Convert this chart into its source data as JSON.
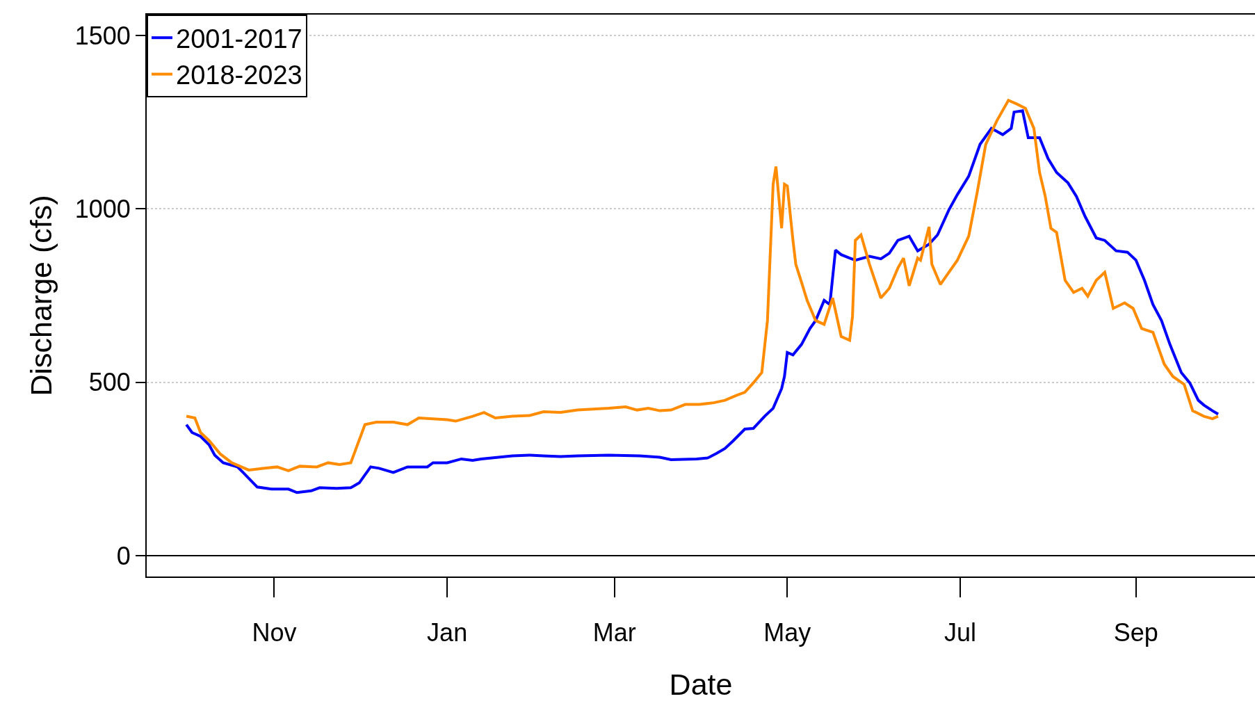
{
  "chart_data": {
    "type": "line",
    "xlabel": "Date",
    "ylabel": "Discharge (cfs)",
    "xlim": [
      "2000-09-17",
      "2001-10-13"
    ],
    "ylim": [
      -60,
      1560
    ],
    "xticks": [
      {
        "value": "2000-11-01",
        "label": "Nov"
      },
      {
        "value": "2001-01-01",
        "label": "Jan"
      },
      {
        "value": "2001-03-01",
        "label": "Mar"
      },
      {
        "value": "2001-05-01",
        "label": "May"
      },
      {
        "value": "2001-07-01",
        "label": "Jul"
      },
      {
        "value": "2001-09-01",
        "label": "Sep"
      }
    ],
    "yticks": [
      0,
      500,
      1000,
      1500
    ],
    "grid": "y",
    "legend": "top left",
    "line_style": "solid",
    "marker": "none",
    "ref_lines": [
      {
        "axis": "y",
        "value": 0,
        "color": "#000000",
        "line_style": "solid"
      }
    ],
    "series": [
      {
        "name": "2001-2017",
        "color": "#0000ff",
        "x": [
          "2000-10-01",
          "2000-10-03",
          "2000-10-06",
          "2000-10-09",
          "2000-10-11",
          "2000-10-14",
          "2000-10-19",
          "2000-10-21",
          "2000-10-26",
          "2000-10-31",
          "2000-11-06",
          "2000-11-09",
          "2000-11-14",
          "2000-11-17",
          "2000-11-23",
          "2000-11-28",
          "2000-12-01",
          "2000-12-05",
          "2000-12-08",
          "2000-12-13",
          "2000-12-18",
          "2000-12-25",
          "2000-12-27",
          "2001-01-01",
          "2001-01-06",
          "2001-01-10",
          "2001-01-13",
          "2001-01-24",
          "2001-01-30",
          "2001-02-04",
          "2001-02-10",
          "2001-02-16",
          "2001-02-27",
          "2001-03-10",
          "2001-03-17",
          "2001-03-21",
          "2001-03-30",
          "2001-04-03",
          "2001-04-06",
          "2001-04-09",
          "2001-04-12",
          "2001-04-16",
          "2001-04-19",
          "2001-04-23",
          "2001-04-26",
          "2001-04-29",
          "2001-04-30",
          "2001-05-01",
          "2001-05-03",
          "2001-05-06",
          "2001-05-09",
          "2001-05-11",
          "2001-05-14",
          "2001-05-16",
          "2001-05-18",
          "2001-05-20",
          "2001-05-23",
          "2001-05-25",
          "2001-05-30",
          "2001-06-03",
          "2001-06-06",
          "2001-06-09",
          "2001-06-13",
          "2001-06-16",
          "2001-06-20",
          "2001-06-23",
          "2001-06-27",
          "2001-06-30",
          "2001-07-04",
          "2001-07-08",
          "2001-07-12",
          "2001-07-16",
          "2001-07-19",
          "2001-07-20",
          "2001-07-23",
          "2001-07-25",
          "2001-07-29",
          "2001-08-01",
          "2001-08-04",
          "2001-08-08",
          "2001-08-11",
          "2001-08-14",
          "2001-08-18",
          "2001-08-21",
          "2001-08-25",
          "2001-08-29",
          "2001-09-01",
          "2001-09-04",
          "2001-09-07",
          "2001-09-10",
          "2001-09-13",
          "2001-09-17",
          "2001-09-20",
          "2001-09-23",
          "2001-09-25",
          "2001-09-28",
          "2001-09-30"
        ],
        "values": [
          378,
          355,
          344,
          320,
          290,
          268,
          256,
          240,
          198,
          192,
          192,
          182,
          187,
          196,
          194,
          196,
          210,
          256,
          252,
          240,
          256,
          256,
          268,
          268,
          279,
          275,
          279,
          288,
          290,
          288,
          286,
          288,
          290,
          288,
          284,
          277,
          279,
          282,
          295,
          309,
          332,
          365,
          367,
          402,
          425,
          482,
          517,
          586,
          579,
          609,
          655,
          678,
          736,
          724,
          881,
          868,
          858,
          852,
          863,
          856,
          872,
          909,
          921,
          879,
          898,
          925,
          997,
          1041,
          1094,
          1186,
          1232,
          1214,
          1232,
          1279,
          1283,
          1205,
          1205,
          1145,
          1105,
          1075,
          1036,
          979,
          916,
          909,
          879,
          875,
          852,
          794,
          724,
          678,
          609,
          528,
          498,
          448,
          434,
          418,
          408
        ]
      },
      {
        "name": "2018-2023",
        "color": "#ff8c00",
        "x": [
          "2000-10-01",
          "2000-10-04",
          "2000-10-06",
          "2000-10-09",
          "2000-10-13",
          "2000-10-17",
          "2000-10-23",
          "2000-10-28",
          "2000-11-02",
          "2000-11-06",
          "2000-11-10",
          "2000-11-16",
          "2000-11-20",
          "2000-11-24",
          "2000-11-28",
          "2000-12-03",
          "2000-12-07",
          "2000-12-13",
          "2000-12-18",
          "2000-12-22",
          "2001-01-01",
          "2001-01-04",
          "2001-01-10",
          "2001-01-14",
          "2001-01-18",
          "2001-01-24",
          "2001-01-30",
          "2001-02-04",
          "2001-02-10",
          "2001-02-16",
          "2001-02-27",
          "2001-03-05",
          "2001-03-09",
          "2001-03-13",
          "2001-03-17",
          "2001-03-21",
          "2001-03-26",
          "2001-03-31",
          "2001-04-05",
          "2001-04-09",
          "2001-04-13",
          "2001-04-16",
          "2001-04-19",
          "2001-04-22",
          "2001-04-24",
          "2001-04-26",
          "2001-04-27",
          "2001-04-29",
          "2001-04-30",
          "2001-05-01",
          "2001-05-03",
          "2001-05-04",
          "2001-05-06",
          "2001-05-08",
          "2001-05-11",
          "2001-05-14",
          "2001-05-17",
          "2001-05-20",
          "2001-05-23",
          "2001-05-24",
          "2001-05-25",
          "2001-05-27",
          "2001-05-30",
          "2001-06-03",
          "2001-06-06",
          "2001-06-09",
          "2001-06-11",
          "2001-06-13",
          "2001-06-16",
          "2001-06-17",
          "2001-06-20",
          "2001-06-21",
          "2001-06-24",
          "2001-06-27",
          "2001-06-30",
          "2001-07-04",
          "2001-07-07",
          "2001-07-10",
          "2001-07-14",
          "2001-07-18",
          "2001-07-21",
          "2001-07-24",
          "2001-07-27",
          "2001-07-29",
          "2001-07-31",
          "2001-08-02",
          "2001-08-04",
          "2001-08-07",
          "2001-08-10",
          "2001-08-13",
          "2001-08-15",
          "2001-08-18",
          "2001-08-21",
          "2001-08-24",
          "2001-08-28",
          "2001-08-31",
          "2001-09-03",
          "2001-09-07",
          "2001-09-11",
          "2001-09-14",
          "2001-09-18",
          "2001-09-21",
          "2001-09-25",
          "2001-09-28",
          "2001-09-30"
        ],
        "values": [
          402,
          397,
          355,
          332,
          293,
          268,
          247,
          252,
          256,
          245,
          258,
          256,
          268,
          263,
          268,
          378,
          385,
          385,
          378,
          397,
          392,
          388,
          402,
          413,
          397,
          402,
          404,
          415,
          413,
          420,
          425,
          429,
          420,
          425,
          418,
          420,
          436,
          436,
          441,
          448,
          462,
          471,
          498,
          528,
          678,
          1071,
          1122,
          944,
          1071,
          1066,
          909,
          840,
          789,
          736,
          678,
          667,
          743,
          632,
          621,
          690,
          909,
          925,
          840,
          743,
          771,
          829,
          858,
          778,
          858,
          852,
          948,
          840,
          782,
          817,
          852,
          921,
          1048,
          1186,
          1255,
          1313,
          1302,
          1290,
          1232,
          1105,
          1036,
          944,
          932,
          794,
          759,
          771,
          748,
          794,
          817,
          713,
          729,
          713,
          655,
          644,
          552,
          517,
          494,
          418,
          402,
          395,
          402
        ]
      }
    ]
  }
}
